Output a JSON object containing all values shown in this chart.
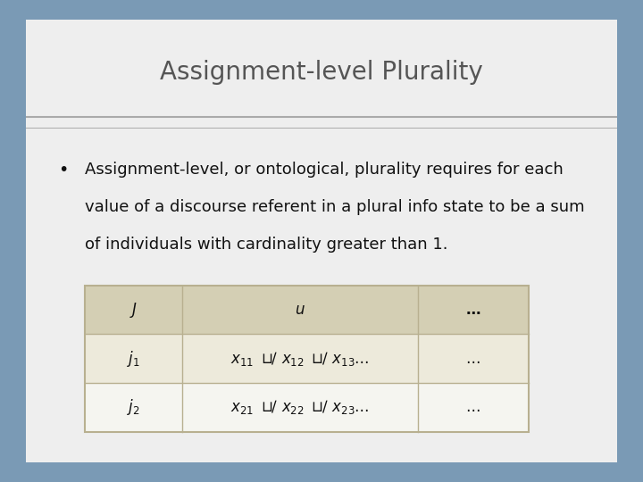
{
  "title": "Assignment-level Plurality",
  "title_fontsize": 20,
  "bullet_text_line1": "Assignment-level, or ontological, plurality requires for each",
  "bullet_text_line2": "value of a discourse referent in a plural info state to be a sum",
  "bullet_text_line3": "of individuals with cardinality greater than 1.",
  "bullet_fontsize": 13.0,
  "bg_outer": "#7a9ab5",
  "bg_slide": "#eeeeee",
  "bg_title_panel": "#e8e8e8",
  "divider_color": "#aaaaaa",
  "title_color": "#555555",
  "text_color": "#111111",
  "table_header_bg": "#d4cfb4",
  "table_row_odd_bg": "#edeadb",
  "table_row_even_bg": "#f5f5f0",
  "table_border_color": "#b8b090"
}
